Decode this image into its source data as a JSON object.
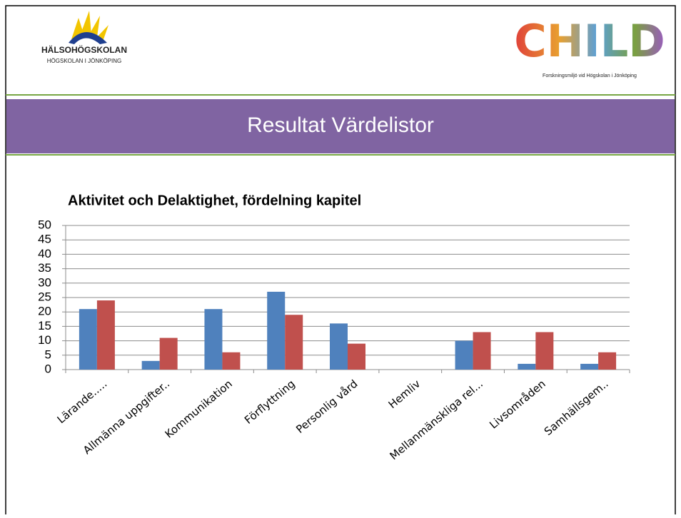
{
  "header": {
    "school_name": "HÄLSOHÖGSKOLAN",
    "school_subtitle": "HÖGSKOLAN I JÖNKÖPING",
    "child_logo": "CHILD",
    "child_caption": "Forskningsmiljö vid Högskolan i Jönköping"
  },
  "slide_title": "Resultat Värdelistor",
  "chart_data": {
    "type": "bar",
    "title": "Aktivitet och Delaktighet, fördelning kapitel",
    "categories": [
      "Lärande.....",
      "Allmänna uppgifter..",
      "Kommunikation",
      "Förflyttning",
      "Personlig vård",
      "Hemliv",
      "Mellanmänskliga rel...",
      "Livsområden",
      "Samhällsgem.."
    ],
    "series": [
      {
        "color": "#4f81bd",
        "values": [
          21,
          3,
          21,
          27,
          16,
          0,
          10,
          2,
          2
        ]
      },
      {
        "color": "#c0504d",
        "values": [
          24,
          11,
          6,
          19,
          9,
          0,
          13,
          13,
          6
        ]
      }
    ],
    "ylim": [
      0,
      50
    ],
    "yticks": [
      0,
      5,
      10,
      15,
      20,
      25,
      30,
      35,
      40,
      45,
      50
    ],
    "grid": true
  }
}
